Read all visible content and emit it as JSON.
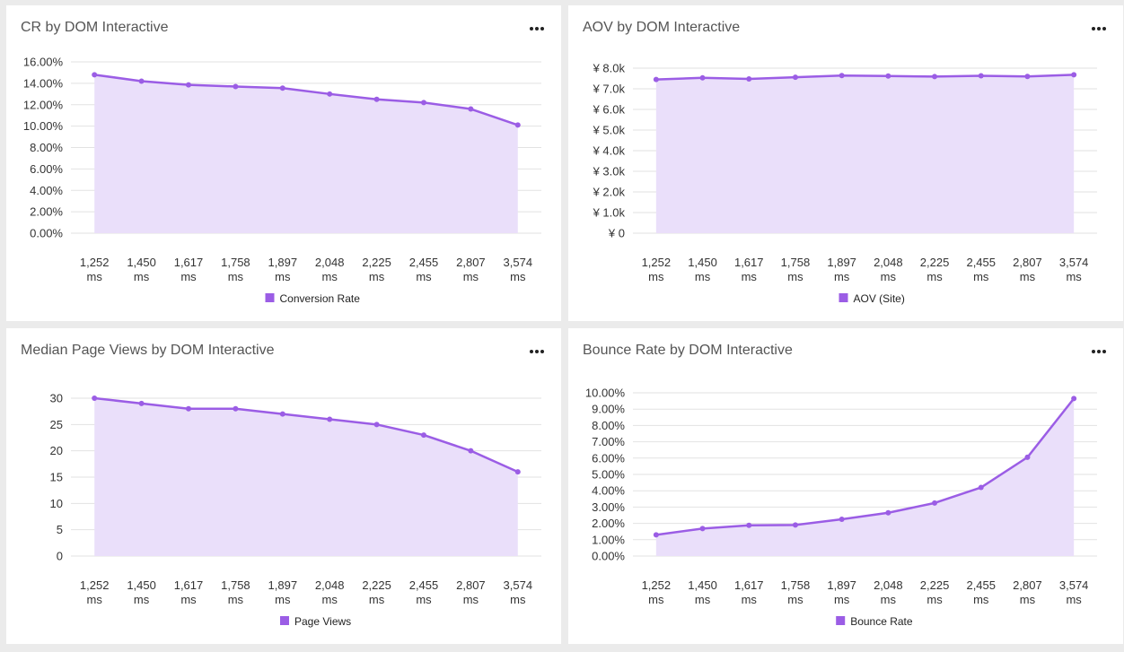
{
  "colors": {
    "line": "#9b5de5",
    "fill": "#eadffa",
    "grid": "#e2e2e2"
  },
  "chart_data": [
    {
      "type": "area",
      "title": "CR by DOM Interactive",
      "categories": [
        "1,252 ms",
        "1,450 ms",
        "1,617 ms",
        "1,758 ms",
        "1,897 ms",
        "2,048 ms",
        "2,225 ms",
        "2,455 ms",
        "2,807 ms",
        "3,574 ms"
      ],
      "series": [
        {
          "name": "Conversion Rate",
          "values": [
            14.8,
            14.2,
            13.85,
            13.7,
            13.55,
            13.0,
            12.5,
            12.2,
            11.6,
            10.1
          ]
        }
      ],
      "ylim": [
        0,
        16
      ],
      "yticks": [
        "0.00%",
        "2.00%",
        "4.00%",
        "6.00%",
        "8.00%",
        "10.00%",
        "12.00%",
        "14.00%",
        "16.00%"
      ],
      "menu_icon": "more-horizontal-icon",
      "legend_position": "bottom",
      "grid": true
    },
    {
      "type": "area",
      "title": "AOV by DOM Interactive",
      "categories": [
        "1,252 ms",
        "1,450 ms",
        "1,617 ms",
        "1,758 ms",
        "1,897 ms",
        "2,048 ms",
        "2,225 ms",
        "2,455 ms",
        "2,807 ms",
        "3,574 ms"
      ],
      "series": [
        {
          "name": "AOV (Site)",
          "values": [
            7450,
            7530,
            7480,
            7560,
            7640,
            7620,
            7590,
            7630,
            7600,
            7680
          ]
        }
      ],
      "ylim": [
        0,
        8000
      ],
      "yticks": [
        "¥ 0",
        "¥ 1.0k",
        "¥ 2.0k",
        "¥ 3.0k",
        "¥ 4.0k",
        "¥ 5.0k",
        "¥ 6.0k",
        "¥ 7.0k",
        "¥ 8.0k"
      ],
      "menu_icon": "more-horizontal-icon",
      "legend_position": "bottom",
      "grid": true
    },
    {
      "type": "area",
      "title": "Median Page Views by DOM Interactive",
      "categories": [
        "1,252 ms",
        "1,450 ms",
        "1,617 ms",
        "1,758 ms",
        "1,897 ms",
        "2,048 ms",
        "2,225 ms",
        "2,455 ms",
        "2,807 ms",
        "3,574 ms"
      ],
      "series": [
        {
          "name": "Page Views",
          "values": [
            30,
            29,
            28,
            28,
            27,
            26,
            25,
            23,
            20,
            16
          ]
        }
      ],
      "ylim": [
        0,
        30
      ],
      "yticks": [
        "0",
        "5",
        "10",
        "15",
        "20",
        "25",
        "30"
      ],
      "menu_icon": "more-horizontal-icon",
      "legend_position": "bottom",
      "grid": true
    },
    {
      "type": "area",
      "title": "Bounce Rate by DOM Interactive",
      "categories": [
        "1,252 ms",
        "1,450 ms",
        "1,617 ms",
        "1,758 ms",
        "1,897 ms",
        "2,048 ms",
        "2,225 ms",
        "2,455 ms",
        "2,807 ms",
        "3,574 ms"
      ],
      "series": [
        {
          "name": "Bounce Rate",
          "values": [
            1.3,
            1.68,
            1.88,
            1.9,
            2.25,
            2.65,
            3.25,
            4.2,
            6.05,
            9.65
          ]
        }
      ],
      "ylim": [
        0,
        10
      ],
      "yticks": [
        "0.00%",
        "1.00%",
        "2.00%",
        "3.00%",
        "4.00%",
        "5.00%",
        "6.00%",
        "7.00%",
        "8.00%",
        "9.00%",
        "10.00%"
      ],
      "menu_icon": "more-horizontal-icon",
      "legend_position": "bottom",
      "grid": true
    }
  ]
}
